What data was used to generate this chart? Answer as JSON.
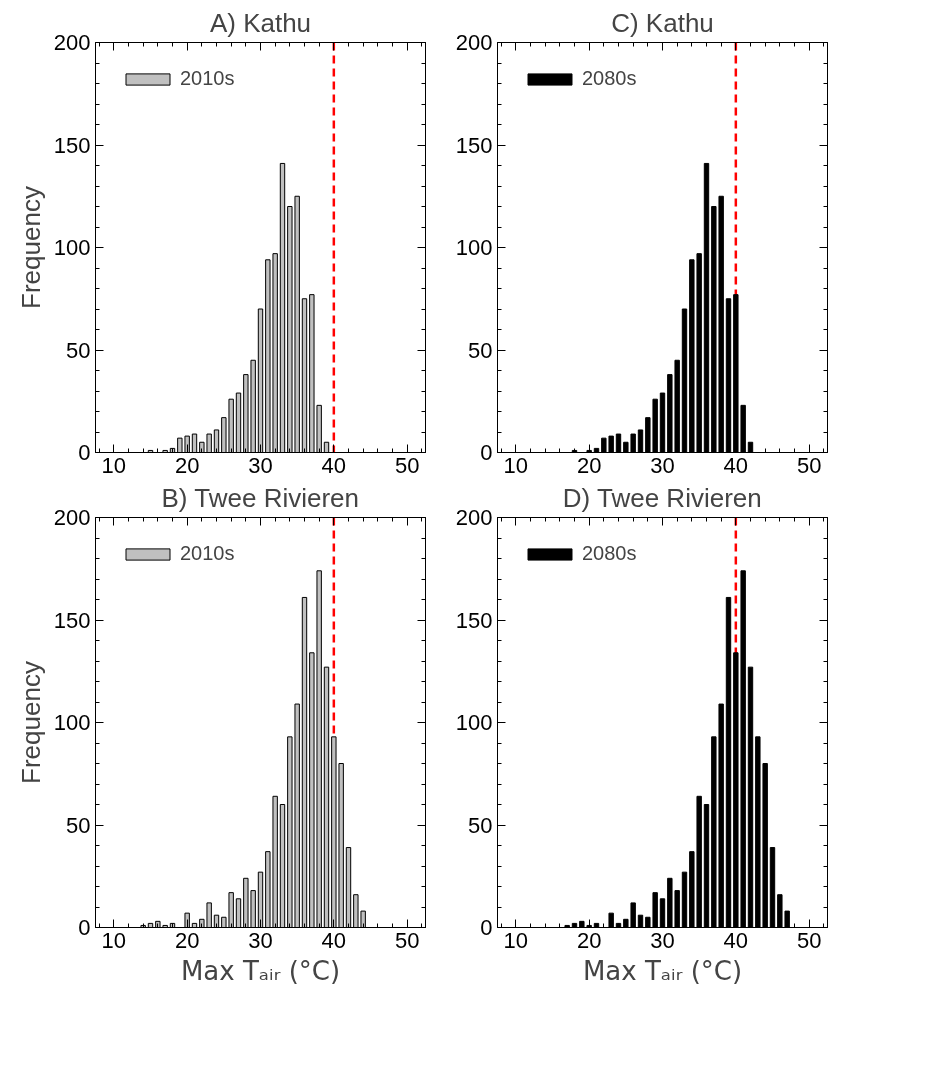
{
  "chart_data": [
    {
      "type": "histogram",
      "title": "A) Kathu",
      "ylabel": "Frequency",
      "bins": [
        14.5,
        15.5,
        16.5,
        17.5,
        18.5,
        19.5,
        20.5,
        21.5,
        22.5,
        23.5,
        24.5,
        25.5,
        26.5,
        27.5,
        28.5,
        29.5,
        30.5,
        31.5,
        32.5,
        33.5,
        34.5,
        35.5,
        36.5,
        37.5,
        38.5,
        39.5
      ],
      "series": [
        {
          "name": "2010s",
          "color": "#c0c0c0",
          "values": [
            1,
            0,
            1,
            2,
            7,
            8,
            9,
            5,
            9,
            11,
            17,
            26,
            29,
            38,
            45,
            70,
            94,
            97,
            141,
            120,
            125,
            75,
            77,
            23,
            5
          ]
        }
      ],
      "xlim": [
        7.5,
        52.5
      ],
      "xticks": [
        10,
        20,
        30,
        40,
        50
      ],
      "ylim": [
        0,
        200
      ],
      "yticks": [
        0,
        50,
        100,
        150,
        200
      ],
      "legend": "top left",
      "grid": false,
      "ref_lines": [
        {
          "axis": "x",
          "value": 40,
          "color": "#ff0000",
          "line_style": "dashed"
        }
      ]
    },
    {
      "type": "histogram",
      "title": "C) Kathu",
      "bins": [
        17.5,
        18.5,
        19.5,
        20.5,
        21.5,
        22.5,
        23.5,
        24.5,
        25.5,
        26.5,
        27.5,
        28.5,
        29.5,
        30.5,
        31.5,
        32.5,
        33.5,
        34.5,
        35.5,
        36.5,
        37.5,
        38.5,
        39.5,
        40.5,
        41.5,
        42.5
      ],
      "series": [
        {
          "name": "2080s",
          "color": "#000000",
          "values": [
            1,
            0,
            1,
            2,
            7,
            8,
            9,
            5,
            9,
            11,
            17,
            26,
            29,
            38,
            45,
            70,
            94,
            97,
            141,
            120,
            125,
            75,
            77,
            23,
            5
          ]
        }
      ],
      "xlim": [
        7.5,
        52.5
      ],
      "xticks": [
        10,
        20,
        30,
        40,
        50
      ],
      "ylim": [
        0,
        200
      ],
      "yticks": [
        0,
        50,
        100,
        150,
        200
      ],
      "legend": "top left",
      "grid": false,
      "ref_lines": [
        {
          "axis": "x",
          "value": 40,
          "color": "#ff0000",
          "line_style": "dashed"
        }
      ]
    },
    {
      "type": "histogram",
      "title": "B) Twee Rivieren",
      "ylabel": "Frequency",
      "xlabel": "Max Tₐᵢᵣ (°C)",
      "bins": [
        13.5,
        14.5,
        15.5,
        16.5,
        17.5,
        18.5,
        19.5,
        20.5,
        21.5,
        22.5,
        23.5,
        24.5,
        25.5,
        26.5,
        27.5,
        28.5,
        29.5,
        30.5,
        31.5,
        32.5,
        33.5,
        34.5,
        35.5,
        36.5,
        37.5,
        38.5,
        39.5,
        40.5,
        41.5,
        42.5,
        43.5,
        44.5
      ],
      "series": [
        {
          "name": "2010s",
          "color": "#c0c0c0",
          "values": [
            1,
            2,
            3,
            1,
            2,
            0,
            7,
            2,
            4,
            12,
            6,
            5,
            17,
            14,
            24,
            18,
            27,
            37,
            64,
            60,
            93,
            109,
            161,
            134,
            174,
            127,
            93,
            80,
            39,
            16,
            8
          ]
        }
      ],
      "xlim": [
        7.5,
        52.5
      ],
      "xticks": [
        10,
        20,
        30,
        40,
        50
      ],
      "ylim": [
        0,
        200
      ],
      "yticks": [
        0,
        50,
        100,
        150,
        200
      ],
      "legend": "top left",
      "grid": false,
      "ref_lines": [
        {
          "axis": "x",
          "value": 40,
          "color": "#ff0000",
          "line_style": "dashed"
        }
      ]
    },
    {
      "type": "histogram",
      "title": "D) Twee Rivieren",
      "xlabel": "Max Tₐᵢᵣ (°C)",
      "bins": [
        16.5,
        17.5,
        18.5,
        19.5,
        20.5,
        21.5,
        22.5,
        23.5,
        24.5,
        25.5,
        26.5,
        27.5,
        28.5,
        29.5,
        30.5,
        31.5,
        32.5,
        33.5,
        34.5,
        35.5,
        36.5,
        37.5,
        38.5,
        39.5,
        40.5,
        41.5,
        42.5,
        43.5,
        44.5,
        45.5,
        46.5,
        47.5
      ],
      "series": [
        {
          "name": "2080s",
          "color": "#000000",
          "values": [
            1,
            2,
            3,
            1,
            2,
            0,
            7,
            2,
            4,
            12,
            6,
            5,
            17,
            14,
            24,
            18,
            27,
            37,
            64,
            60,
            93,
            109,
            161,
            134,
            174,
            127,
            93,
            80,
            39,
            16,
            8
          ]
        }
      ],
      "xlim": [
        7.5,
        52.5
      ],
      "xticks": [
        10,
        20,
        30,
        40,
        50
      ],
      "ylim": [
        0,
        200
      ],
      "yticks": [
        0,
        50,
        100,
        150,
        200
      ],
      "legend": "top left",
      "grid": false,
      "ref_lines": [
        {
          "axis": "x",
          "value": 40,
          "color": "#ff0000",
          "line_style": "dashed"
        }
      ]
    }
  ]
}
